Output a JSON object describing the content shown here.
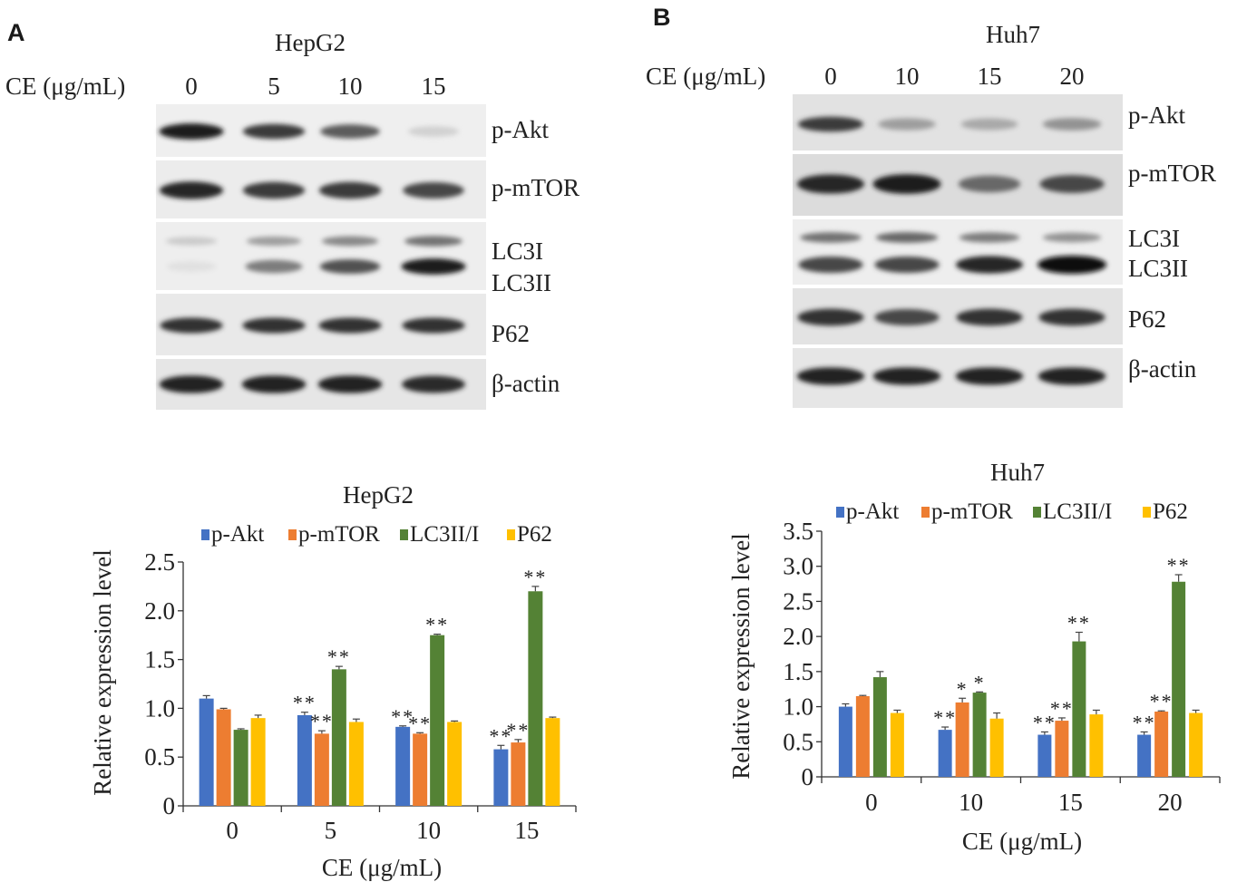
{
  "figure": {
    "panels": [
      {
        "letter": "A",
        "blot": {
          "cell_line": "HepG2",
          "dose_label": "CE (μg/mL)",
          "doses": [
            "0",
            "5",
            "10",
            "15"
          ],
          "bands": [
            "p-Akt",
            "p-mTOR",
            "LC3I",
            "LC3II",
            "P62",
            "β-actin"
          ],
          "intensity": {
            "p-Akt": [
              0.95,
              0.8,
              0.65,
              0.12
            ],
            "p-mTOR": [
              0.9,
              0.8,
              0.8,
              0.75
            ],
            "LC3I": [
              0.15,
              0.35,
              0.45,
              0.55
            ],
            "LC3II": [
              0.05,
              0.5,
              0.7,
              0.95
            ],
            "P62": [
              0.85,
              0.85,
              0.85,
              0.85
            ],
            "β-actin": [
              0.92,
              0.92,
              0.92,
              0.88
            ]
          }
        }
      },
      {
        "letter": "B",
        "blot": {
          "cell_line": "Huh7",
          "dose_label": "CE (μg/mL)",
          "doses": [
            "0",
            "10",
            "15",
            "20"
          ],
          "bands": [
            "p-Akt",
            "p-mTOR",
            "LC3I",
            "LC3II",
            "P62",
            "β-actin"
          ],
          "intensity": {
            "p-Akt": [
              0.8,
              0.35,
              0.3,
              0.4
            ],
            "p-mTOR": [
              0.9,
              0.95,
              0.6,
              0.75
            ],
            "LC3I": [
              0.55,
              0.6,
              0.5,
              0.4
            ],
            "LC3II": [
              0.75,
              0.75,
              0.9,
              1.0
            ],
            "P62": [
              0.85,
              0.75,
              0.85,
              0.85
            ],
            "β-actin": [
              0.92,
              0.92,
              0.92,
              0.92
            ]
          }
        }
      }
    ]
  },
  "chart_data": [
    {
      "type": "bar",
      "title": "HepG2",
      "xlabel": "CE (μg/mL)",
      "ylabel": "Relative expression level",
      "categories": [
        "0",
        "5",
        "10",
        "15"
      ],
      "ylim": [
        0,
        2.5
      ],
      "yticks": [
        "0",
        "0.5",
        "1.0",
        "1.5",
        "2.0",
        "2.5"
      ],
      "legend_position": "top",
      "series": [
        {
          "name": "p-Akt",
          "color": "#4472c4",
          "values": [
            1.1,
            0.93,
            0.81,
            0.58
          ],
          "errors": [
            0.03,
            0.03,
            0.01,
            0.04
          ],
          "annotations": [
            "",
            "**",
            "**",
            "**"
          ]
        },
        {
          "name": "p-mTOR",
          "color": "#ed7d31",
          "values": [
            0.99,
            0.74,
            0.74,
            0.65
          ],
          "errors": [
            0.01,
            0.03,
            0.01,
            0.03
          ],
          "annotations": [
            "",
            "**",
            "**",
            "**"
          ]
        },
        {
          "name": "LC3II/I",
          "color": "#548235",
          "values": [
            0.78,
            1.4,
            1.75,
            2.2
          ],
          "errors": [
            0.01,
            0.03,
            0.01,
            0.05
          ],
          "annotations": [
            "",
            "**",
            "**",
            "**"
          ]
        },
        {
          "name": "P62",
          "color": "#ffc000",
          "values": [
            0.9,
            0.86,
            0.86,
            0.9
          ],
          "errors": [
            0.03,
            0.03,
            0.01,
            0.01
          ],
          "annotations": [
            "",
            "",
            "",
            ""
          ]
        }
      ]
    },
    {
      "type": "bar",
      "title": "Huh7",
      "xlabel": "CE (μg/mL)",
      "ylabel": "Relative expression level",
      "categories": [
        "0",
        "10",
        "15",
        "20"
      ],
      "ylim": [
        0,
        3.5
      ],
      "yticks": [
        "0",
        "0.5",
        "1.0",
        "1.5",
        "2.0",
        "2.5",
        "3.0",
        "3.5"
      ],
      "legend_position": "top",
      "series": [
        {
          "name": "p-Akt",
          "color": "#4472c4",
          "values": [
            1.0,
            0.67,
            0.6,
            0.6
          ],
          "errors": [
            0.04,
            0.04,
            0.04,
            0.04
          ],
          "annotations": [
            "",
            "**",
            "**",
            "**"
          ]
        },
        {
          "name": "p-mTOR",
          "color": "#ed7d31",
          "values": [
            1.15,
            1.06,
            0.8,
            0.93
          ],
          "errors": [
            0.01,
            0.06,
            0.04,
            0.01
          ],
          "annotations": [
            "",
            "*",
            "**",
            "**"
          ]
        },
        {
          "name": "LC3II/I",
          "color": "#548235",
          "values": [
            1.42,
            1.2,
            1.93,
            2.78
          ],
          "errors": [
            0.08,
            0.01,
            0.13,
            0.1
          ],
          "annotations": [
            "",
            "*",
            "**",
            "**"
          ]
        },
        {
          "name": "P62",
          "color": "#ffc000",
          "values": [
            0.91,
            0.83,
            0.89,
            0.91
          ],
          "errors": [
            0.04,
            0.08,
            0.06,
            0.04
          ],
          "annotations": [
            "",
            "",
            "",
            ""
          ]
        }
      ]
    }
  ]
}
